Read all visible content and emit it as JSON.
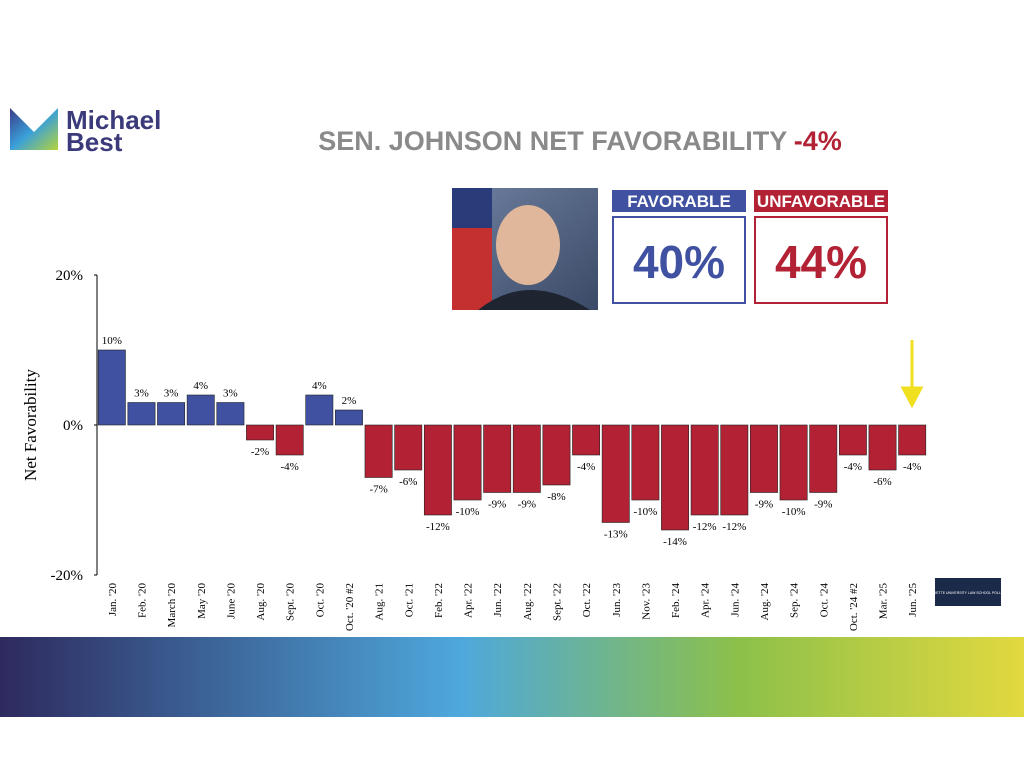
{
  "logo": {
    "line1": "Michael",
    "line2": "Best"
  },
  "poll_logo": {
    "text": "MARQUETTE UNIVERSITY LAW SCHOOL POLL"
  },
  "favorable": {
    "label": "FAVORABLE",
    "value": "40%"
  },
  "unfavorable": {
    "label": "UNFAVORABLE",
    "value": "44%"
  },
  "chart_data": {
    "type": "bar",
    "title": "SEN. JOHNSON NET FAVORABILITY",
    "title_value": "-4%",
    "y_label": "Net  Favorability",
    "categories": [
      "Jan. '20",
      "Feb. '20",
      "March '20",
      "May '20",
      "June '20",
      "Aug. '20",
      "Sept. '20",
      "Oct. '20",
      "Oct. '20 #2",
      "Aug. '21",
      "Oct. '21",
      "Feb. '22",
      "Apr. '22",
      "Jun. '22",
      "Aug. '22",
      "Sept. '22",
      "Oct. '22",
      "Jun. '23",
      "Nov. '23",
      "Feb. '24",
      "Apr. '24",
      "Jun. '24",
      "Aug. '24",
      "Sep. '24",
      "Oct. '24",
      "Oct. '24 #2",
      "Mar. '25",
      "Jun. '25"
    ],
    "values": [
      10,
      3,
      3,
      4,
      3,
      -2,
      -4,
      4,
      2,
      -7,
      -6,
      -12,
      -10,
      -9,
      -9,
      -8,
      -4,
      -13,
      -10,
      -14,
      -12,
      -12,
      -9,
      -10,
      -9,
      -4,
      -6,
      -4
    ],
    "value_labels": [
      "10%",
      "3%",
      "3%",
      "4%",
      "3%",
      "-2%",
      "-4%",
      "4%",
      "2%",
      "-7%",
      "-6%",
      "-12%",
      "-10%",
      "-9%",
      "-9%",
      "-8%",
      "-4%",
      "-13%",
      "-10%",
      "-14%",
      "-12%",
      "-12%",
      "-9%",
      "-10%",
      "-9%",
      "-4%",
      "-6%",
      "-4%"
    ],
    "positive_color": "#3f51a0",
    "negative_color": "#b22234",
    "ylim": [
      -20,
      20
    ],
    "yticks": [
      {
        "value": -20,
        "label": "-20%"
      },
      {
        "value": 0,
        "label": "0%"
      },
      {
        "value": 20,
        "label": "20%"
      }
    ],
    "grid": false
  }
}
